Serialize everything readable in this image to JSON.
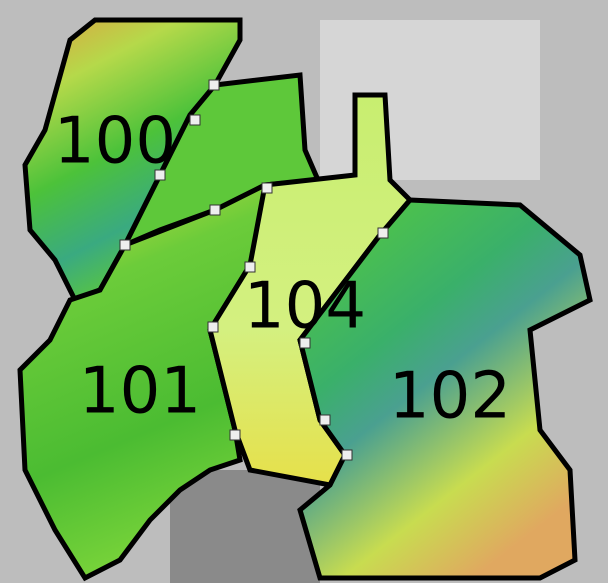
{
  "map": {
    "regions": [
      {
        "label": "100"
      },
      {
        "label": "101"
      },
      {
        "label": "104"
      },
      {
        "label": "102"
      }
    ]
  }
}
